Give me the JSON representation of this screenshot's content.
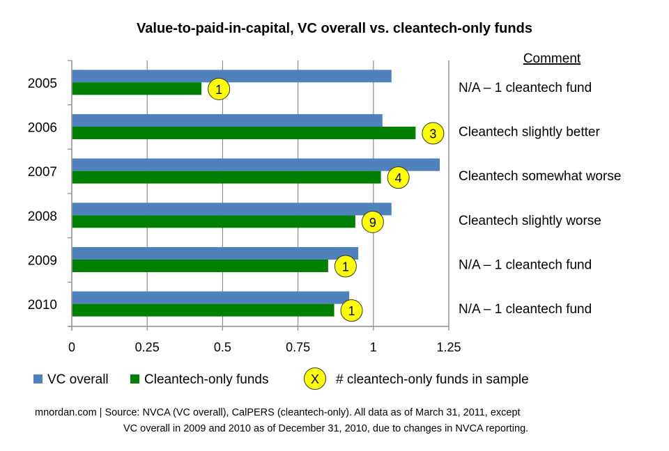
{
  "chart_data": {
    "type": "bar",
    "orientation": "horizontal",
    "title": "Value-to-paid-in-capital, VC overall vs. cleantech-only funds",
    "xlabel": "",
    "ylabel": "",
    "categories": [
      "2005",
      "2006",
      "2007",
      "2008",
      "2009",
      "2010"
    ],
    "series": [
      {
        "name": "VC overall",
        "color": "#4F81BD",
        "values": [
          1.06,
          1.03,
          1.22,
          1.06,
          0.95,
          0.92
        ]
      },
      {
        "name": "Cleantech-only funds",
        "color": "#008000",
        "values": [
          0.43,
          1.14,
          1.025,
          0.94,
          0.85,
          0.87
        ]
      }
    ],
    "fund_counts": [
      1,
      3,
      4,
      9,
      1,
      1
    ],
    "fund_count_badge_color": "#FFFF00",
    "xlim": [
      0,
      1.25
    ],
    "xticks": [
      0,
      0.25,
      0.5,
      0.75,
      1,
      1.25
    ],
    "xtick_labels": [
      "0",
      "0.25",
      "0.5",
      "0.75",
      "1",
      "1.25"
    ],
    "grid": true,
    "legend": {
      "placement": "bottom",
      "entries": [
        {
          "label": "VC overall",
          "marker": "square",
          "color": "#4F81BD"
        },
        {
          "label": "Cleantech-only funds",
          "marker": "square",
          "color": "#008000"
        },
        {
          "label": "# cleantech-only funds in sample",
          "marker": "circle",
          "symbol": "X",
          "color": "#FFFF00"
        }
      ]
    },
    "comments": {
      "header": "Comment",
      "items": [
        "N/A – 1 cleantech fund",
        "Cleantech slightly better",
        "Cleantech somewhat worse",
        "Cleantech slightly worse",
        "N/A – 1 cleantech fund",
        "N/A – 1 cleantech fund"
      ]
    }
  },
  "footnote": {
    "line1": "mnordan.com |  Source: NVCA (VC overall), CalPERS (cleantech-only). All data as of March 31, 2011, except",
    "line2": "VC overall in 2009 and 2010 as of December 31, 2010, due to changes in NVCA reporting."
  }
}
